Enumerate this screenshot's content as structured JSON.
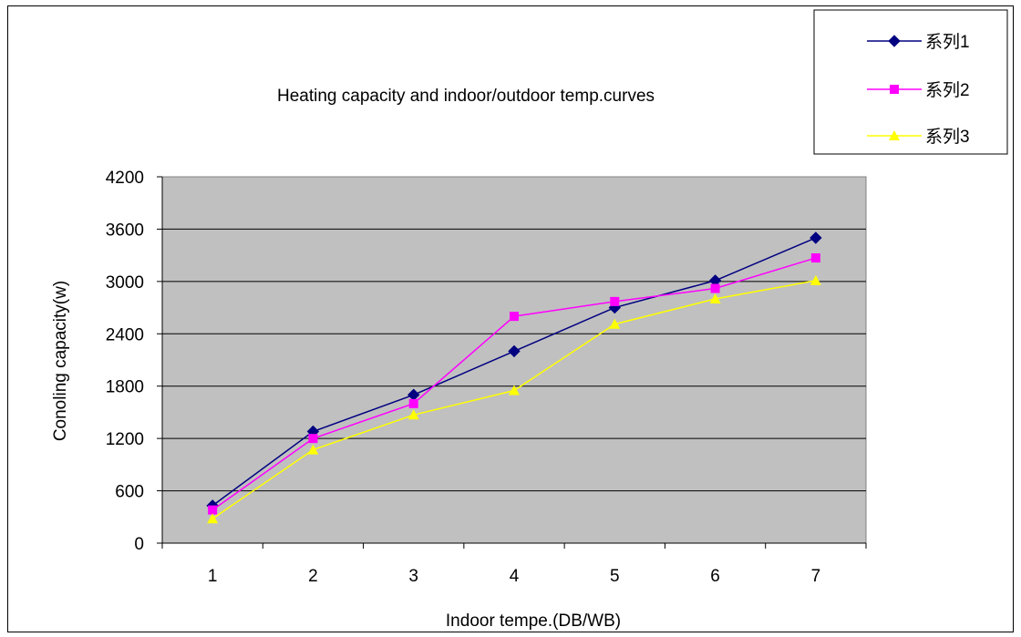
{
  "chart_data": {
    "type": "line",
    "title": "Heating capacity and indoor/outdoor temp.curves",
    "xlabel": "Indoor tempe.(DB/WB)",
    "ylabel": "Conoling capacity(w)",
    "categories": [
      "1",
      "2",
      "3",
      "4",
      "5",
      "6",
      "7"
    ],
    "ylim": [
      0,
      4200
    ],
    "yticks": [
      0,
      600,
      1200,
      1800,
      2400,
      3000,
      3600,
      4200
    ],
    "grid": true,
    "legend_position": "top-right",
    "plot_background": "#c0c0c0",
    "series": [
      {
        "name": "系列1",
        "marker": "diamond",
        "color": "#000080",
        "values": [
          430,
          1280,
          1700,
          2200,
          2700,
          3010,
          3500
        ]
      },
      {
        "name": "系列2",
        "marker": "square",
        "color": "#ff00ff",
        "values": [
          380,
          1200,
          1600,
          2600,
          2770,
          2920,
          3270
        ]
      },
      {
        "name": "系列3",
        "marker": "triangle",
        "color": "#ffff00",
        "values": [
          280,
          1070,
          1470,
          1750,
          2510,
          2800,
          3010
        ]
      }
    ]
  }
}
